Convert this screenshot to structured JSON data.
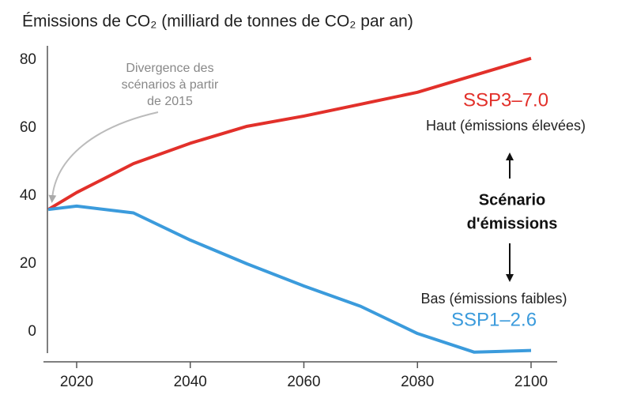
{
  "chart_data": {
    "type": "line",
    "title": "Émissions de CO₂ (milliard de tonnes de CO₂ par an)",
    "x": [
      2015,
      2020,
      2030,
      2040,
      2050,
      2060,
      2070,
      2080,
      2090,
      2100
    ],
    "series": [
      {
        "name": "SSP3–7.0",
        "color": "#e2302a",
        "values": [
          36,
          41,
          49.5,
          55.5,
          60.5,
          63.5,
          67,
          70.5,
          75.5,
          80.5
        ]
      },
      {
        "name": "SSP1–2.6",
        "color": "#3b9bdc",
        "values": [
          36,
          37,
          35,
          27,
          20,
          13.5,
          7.5,
          -0.5,
          -6,
          -5.5
        ]
      }
    ],
    "xlim": [
      2014,
      2104
    ],
    "xticks": [
      2020,
      2040,
      2060,
      2080,
      2100
    ],
    "ylim": [
      -8,
      84
    ],
    "yticks": [
      0,
      20,
      40,
      60,
      80
    ],
    "grid": false,
    "annotations": [
      [
        "Divergence des",
        "scénarios à partir",
        "de 2015"
      ],
      [
        "Haut (émissions élevées)"
      ],
      [
        "Scénario",
        "d'émissions"
      ],
      [
        "Bas (émissions faibles)"
      ]
    ]
  }
}
